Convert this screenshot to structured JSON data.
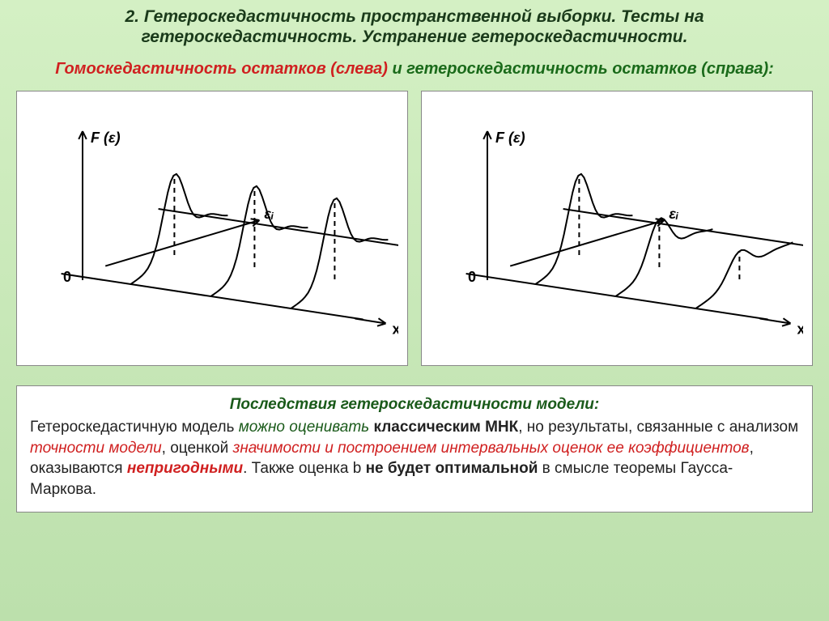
{
  "title": "2. Гетероскедастичность пространственной выборки. Тесты на гетероскедастичность. Устранение гетероскедастичности.",
  "subtitle": {
    "part1": "Гомоскедастичность остатков (слева)",
    "sep": " и ",
    "part2": "гетероскедастичность остатков (справа):"
  },
  "diagrams": {
    "left": {
      "y_label": "F (ε)",
      "eps_label": "εᵢ",
      "x_label": "x",
      "origin_label": "0",
      "stroke": "#000000",
      "stroke_width": 2,
      "curves": [
        {
          "peak_height": 1.0
        },
        {
          "peak_height": 1.0
        },
        {
          "peak_height": 1.0
        }
      ]
    },
    "right": {
      "y_label": "F (ε)",
      "eps_label": "εᵢ",
      "x_label": "x",
      "origin_label": "0",
      "stroke": "#000000",
      "stroke_width": 2,
      "curves": [
        {
          "peak_height": 1.0
        },
        {
          "peak_height": 0.6
        },
        {
          "peak_height": 0.35
        }
      ]
    }
  },
  "consequences": {
    "heading": "Последствия гетероскедастичности модели:",
    "t1": "Гетероскедастичную модель ",
    "t2": "можно оценивать",
    "t3": " классическим МНК",
    "t4": ", но результаты, связанные с анализом ",
    "t5": "точности модели",
    "t6": ", оценкой ",
    "t7": "значимости и построением интервальных оценок ее коэффициентов",
    "t8": ", оказываются ",
    "t9": "непригодными",
    "t10": ". Также оценка b ",
    "t11": "не будет оптимальной",
    "t12": " в смысле теоремы Гаусса-Маркова."
  },
  "style": {
    "title_fontsize": 21,
    "subtitle_fontsize": 20,
    "body_fontsize": 19,
    "background_gradient": [
      "#d4f0c4",
      "#c8e8b8",
      "#bce0ac"
    ],
    "box_bg": "#ffffff",
    "box_border": "#888888",
    "red": "#d02020",
    "green": "#1a5a1a",
    "title_color": "#1a3a1a"
  }
}
